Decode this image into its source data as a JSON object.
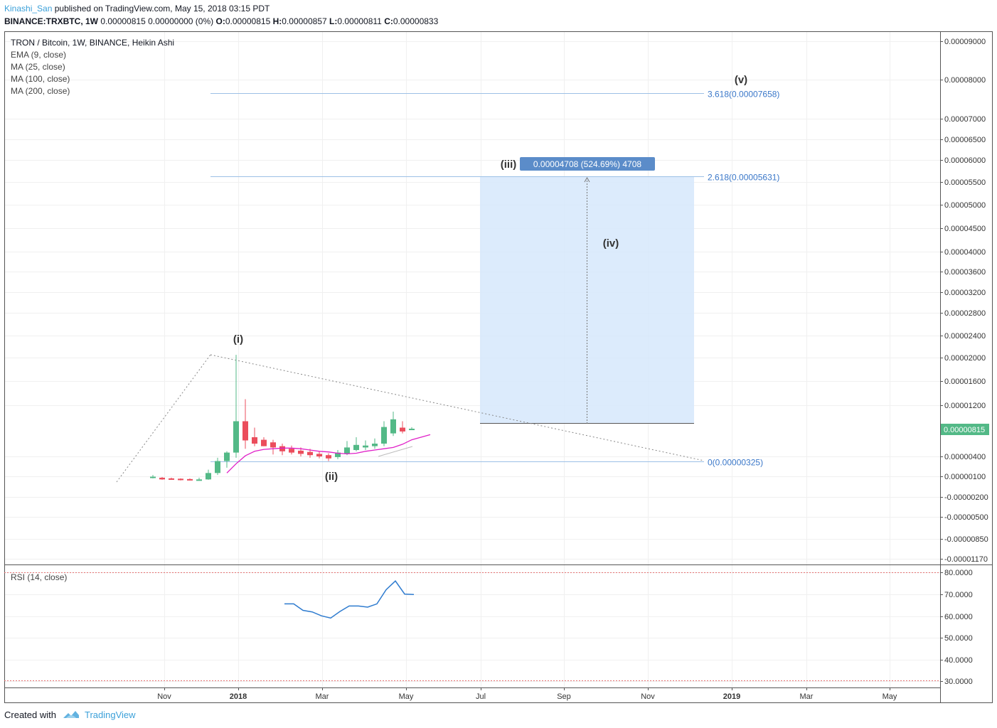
{
  "header": {
    "author": "Kinashi_San",
    "published": "published on TradingView.com, May 15, 2018 03:15 PDT",
    "symbol": "BINANCE:TRXBTC, 1W",
    "quote": "0.00000815 0.00000000 (0%)",
    "o_label": "O:",
    "o_value": "0.00000815",
    "h_label": "H:",
    "h_value": "0.00000857",
    "l_label": "L:",
    "l_value": "0.00000811",
    "c_label": "C:",
    "c_value": "0.00000833"
  },
  "legend": {
    "title": "TRON / Bitcoin, 1W, BINANCE, Heikin Ashi",
    "ema9": "EMA (9, close)",
    "ma25": "MA (25, close)",
    "ma100": "MA (100, close)",
    "ma200": "MA (200, close)"
  },
  "rsi_label": "RSI (14, close)",
  "footer": {
    "created_with": "Created with",
    "brand": "TradingView"
  },
  "colors": {
    "up": "#53b987",
    "down": "#eb4d5c",
    "ema": "#e020c8",
    "rsi": "#2e7bcf",
    "fib": "#3b78c9",
    "projection_fill": "#d6e8fb"
  },
  "chart_data": {
    "type": "candlestick",
    "style": "Heikin Ashi",
    "price_axis": {
      "ticks": [
        "0.00009000",
        "0.00008000",
        "0.00007000",
        "0.00006500",
        "0.00006000",
        "0.00005500",
        "0.00005000",
        "0.00004500",
        "0.00004000",
        "0.00003600",
        "0.00003200",
        "0.00002800",
        "0.00002400",
        "0.00002000",
        "0.00001600",
        "0.00001200",
        "0.00000400",
        "0.00000100",
        "-0.00000200",
        "-0.00000500",
        "-0.00000850",
        "-0.00001170"
      ],
      "current_price": "0.00000815"
    },
    "time_axis": {
      "ticks": [
        "Nov",
        "2018",
        "Mar",
        "May",
        "Jul",
        "Sep",
        "Nov",
        "2019",
        "Mar",
        "May"
      ],
      "bold": [
        "2018",
        "2019"
      ]
    },
    "candles": [
      {
        "week": 1,
        "o": 9e-07,
        "h": 1.2e-06,
        "l": 7e-07,
        "c": 9.5e-07
      },
      {
        "week": 2,
        "o": 8e-07,
        "h": 9e-07,
        "l": 5e-07,
        "c": 5.5e-07
      },
      {
        "week": 3,
        "o": 7e-07,
        "h": 8e-07,
        "l": 5e-07,
        "c": 5.5e-07
      },
      {
        "week": 4,
        "o": 6.5e-07,
        "h": 7e-07,
        "l": 4e-07,
        "c": 5e-07
      },
      {
        "week": 5,
        "o": 6e-07,
        "h": 7e-07,
        "l": 4e-07,
        "c": 4.5e-07
      },
      {
        "week": 6,
        "o": 5e-07,
        "h": 8e-07,
        "l": 4e-07,
        "c": 5.5e-07
      },
      {
        "week": 7,
        "o": 5.5e-07,
        "h": 2e-06,
        "l": 5e-07,
        "c": 1.5e-06
      },
      {
        "week": 8,
        "o": 1.5e-06,
        "h": 3.8e-06,
        "l": 1.2e-06,
        "c": 3.3e-06
      },
      {
        "week": 9,
        "o": 3.3e-06,
        "h": 4.8e-06,
        "l": 2.3e-06,
        "c": 4.6e-06
      },
      {
        "week": 10,
        "o": 4.6e-06,
        "h": 2.05e-05,
        "l": 3.8e-06,
        "c": 9.5e-06
      },
      {
        "week": 11,
        "o": 9.5e-06,
        "h": 1.3e-05,
        "l": 5.2e-06,
        "c": 6.5e-06
      },
      {
        "week": 12,
        "o": 7e-06,
        "h": 8.5e-06,
        "l": 5.6e-06,
        "c": 6e-06
      },
      {
        "week": 13,
        "o": 6.6e-06,
        "h": 7e-06,
        "l": 5.6e-06,
        "c": 5.6e-06
      },
      {
        "week": 14,
        "o": 6.2e-06,
        "h": 6.6e-06,
        "l": 4.3e-06,
        "c": 5.4e-06
      },
      {
        "week": 15,
        "o": 5.6e-06,
        "h": 6e-06,
        "l": 4.2e-06,
        "c": 4.8e-06
      },
      {
        "week": 16,
        "o": 5.2e-06,
        "h": 5.7e-06,
        "l": 4.3e-06,
        "c": 4.6e-06
      },
      {
        "week": 17,
        "o": 4.9e-06,
        "h": 5.4e-06,
        "l": 4e-06,
        "c": 4.4e-06
      },
      {
        "week": 18,
        "o": 4.7e-06,
        "h": 5.2e-06,
        "l": 3.8e-06,
        "c": 4.2e-06
      },
      {
        "week": 19,
        "o": 4.4e-06,
        "h": 4.8e-06,
        "l": 3.7e-06,
        "c": 4e-06
      },
      {
        "week": 20,
        "o": 4.2e-06,
        "h": 4.5e-06,
        "l": 3.3e-06,
        "c": 3.7e-06
      },
      {
        "week": 21,
        "o": 3.9e-06,
        "h": 5e-06,
        "l": 3.6e-06,
        "c": 4.6e-06
      },
      {
        "week": 22,
        "o": 4.4e-06,
        "h": 6.4e-06,
        "l": 4.2e-06,
        "c": 5.4e-06
      },
      {
        "week": 23,
        "o": 5e-06,
        "h": 7e-06,
        "l": 4.8e-06,
        "c": 5.8e-06
      },
      {
        "week": 24,
        "o": 5.4e-06,
        "h": 6.5e-06,
        "l": 5e-06,
        "c": 5.7e-06
      },
      {
        "week": 25,
        "o": 5.6e-06,
        "h": 6.8e-06,
        "l": 5.2e-06,
        "c": 6e-06
      },
      {
        "week": 26,
        "o": 6e-06,
        "h": 9.5e-06,
        "l": 5.6e-06,
        "c": 8.6e-06
      },
      {
        "week": 27,
        "o": 7.6e-06,
        "h": 1.1e-05,
        "l": 7.2e-06,
        "c": 9.8e-06
      },
      {
        "week": 28,
        "o": 8.5e-06,
        "h": 9.5e-06,
        "l": 7.6e-06,
        "c": 7.9e-06
      },
      {
        "week": 29,
        "o": 8.15e-06,
        "h": 8.57e-06,
        "l": 8.11e-06,
        "c": 8.33e-06
      }
    ],
    "ema9": [
      1.5e-06,
      2.9e-06,
      4.1e-06,
      4.8e-06,
      5.1e-06,
      5.2e-06,
      5.3e-06,
      5.3e-06,
      5.2e-06,
      5e-06,
      4.8e-06,
      4.7e-06,
      4.5e-06,
      4.4e-06,
      4.5e-06,
      4.8e-06,
      5e-06,
      5.2e-06,
      5.4e-06,
      5.9e-06,
      6.6e-06,
      7e-06,
      7.4e-06
    ],
    "rsi": {
      "range": [
        30,
        80
      ],
      "ticks": [
        "80.0000",
        "70.0000",
        "60.0000",
        "50.0000",
        "40.0000",
        "30.0000"
      ],
      "values": [
        65.5,
        65.5,
        62.5,
        61.8,
        60,
        59,
        62,
        64.5,
        64.5,
        64,
        65.5,
        72,
        76,
        70,
        69.8
      ]
    },
    "fib_levels": [
      {
        "label": "3.618(0.00007658)",
        "value": 7.658e-05
      },
      {
        "label": "2.618(0.00005631)",
        "value": 5.631e-05
      },
      {
        "label": "0(0.00000325)",
        "value": 3.25e-06
      }
    ],
    "waves": [
      "(i)",
      "(ii)",
      "(iii)",
      "(iv)",
      "(v)"
    ],
    "measure_label": "0.00004708 (524.69%) 4708"
  }
}
